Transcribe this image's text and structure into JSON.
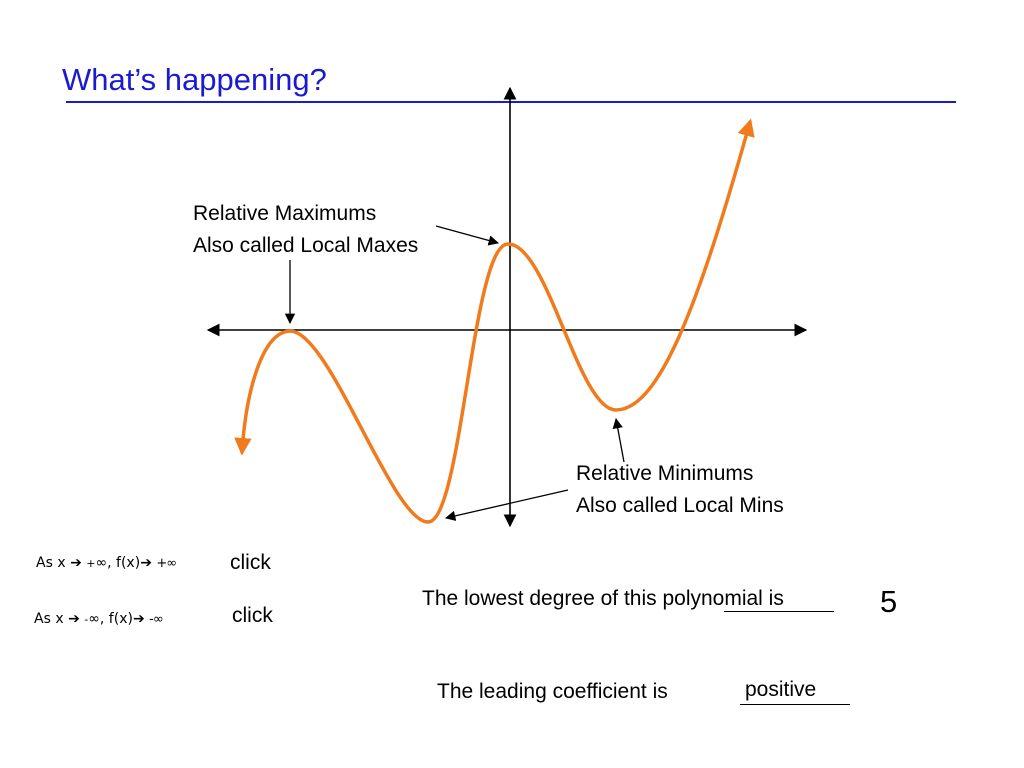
{
  "slide": {
    "title": "What’s happening?"
  },
  "annotations": {
    "max_line1": "Relative Maximums",
    "max_line2": "Also called Local Maxes",
    "min_line1": "Relative Minimums",
    "min_line2": "Also called Local Mins"
  },
  "end_behavior": [
    {
      "prefix": "As x",
      "arrow": "➔",
      "sign": "+",
      "infinity": "∞",
      "fx": ", f(x)",
      "fx_arrow": "➔",
      "hidden_value": "+∞",
      "click_label": "click"
    },
    {
      "prefix": "As x",
      "arrow": "➔",
      "sign": "-",
      "infinity": "∞",
      "fx": ", f(x)",
      "fx_arrow": "➔",
      "hidden_value": "-∞",
      "click_label": "click"
    }
  ],
  "questions": {
    "degree_text": "The lowest degree of this polynomial is",
    "degree_answer": "5",
    "coef_text": "The leading coefficient is",
    "coef_answer": "positive"
  },
  "colors": {
    "title": "#1a1ad0",
    "curve": "#f07a1c",
    "axis": "#000000"
  }
}
